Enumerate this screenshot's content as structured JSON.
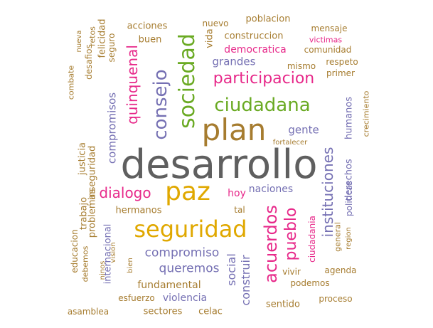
{
  "colors": {
    "gray": "#5f5f5f",
    "gold": "#e0a800",
    "green": "#6aaa23",
    "pink": "#e7298a",
    "purple": "#7570b3",
    "orange": "#d95f02",
    "brown": "#a67c2f",
    "teal": "#1b9e77"
  },
  "words": [
    {
      "text": "desarrollo",
      "color": "gray"
    },
    {
      "text": "plan",
      "color": "brown"
    },
    {
      "text": "paz",
      "color": "gold"
    },
    {
      "text": "seguridad",
      "color": "gold"
    },
    {
      "text": "sociedad",
      "color": "green"
    },
    {
      "text": "ciudadana",
      "color": "green"
    },
    {
      "text": "participacion",
      "color": "pink"
    },
    {
      "text": "consejo",
      "color": "purple"
    },
    {
      "text": "quinquenal",
      "color": "pink"
    },
    {
      "text": "acuerdos",
      "color": "pink"
    },
    {
      "text": "pueblo",
      "color": "pink"
    },
    {
      "text": "dialogo",
      "color": "pink"
    },
    {
      "text": "instituciones",
      "color": "purple"
    },
    {
      "text": "compromiso",
      "color": "purple"
    },
    {
      "text": "queremos",
      "color": "purple"
    },
    {
      "text": "social",
      "color": "purple"
    },
    {
      "text": "construir",
      "color": "purple"
    },
    {
      "text": "gente",
      "color": "purple"
    },
    {
      "text": "grandes",
      "color": "purple"
    },
    {
      "text": "compromisos",
      "color": "purple"
    },
    {
      "text": "naciones",
      "color": "purple"
    },
    {
      "text": "fundamental",
      "color": "brown"
    },
    {
      "text": "violencia",
      "color": "purple"
    },
    {
      "text": "hoy",
      "color": "pink"
    },
    {
      "text": "democratica",
      "color": "pink"
    },
    {
      "text": "internacional",
      "color": "purple"
    },
    {
      "text": "hermanos",
      "color": "brown"
    },
    {
      "text": "humanos",
      "color": "purple"
    },
    {
      "text": "derechos",
      "color": "purple"
    },
    {
      "text": "politicas",
      "color": "purple"
    },
    {
      "text": "construccion",
      "color": "brown"
    },
    {
      "text": "poblacion",
      "color": "brown"
    },
    {
      "text": "acciones",
      "color": "brown"
    },
    {
      "text": "buen",
      "color": "brown"
    },
    {
      "text": "vida",
      "color": "brown"
    },
    {
      "text": "nuevo",
      "color": "brown"
    },
    {
      "text": "mensaje",
      "color": "brown"
    },
    {
      "text": "victimas",
      "color": "pink"
    },
    {
      "text": "comunidad",
      "color": "brown"
    },
    {
      "text": "respeto",
      "color": "brown"
    },
    {
      "text": "primer",
      "color": "brown"
    },
    {
      "text": "mismo",
      "color": "brown"
    },
    {
      "text": "crecimiento",
      "color": "brown"
    },
    {
      "text": "fortalecer",
      "color": "brown"
    },
    {
      "text": "justicia",
      "color": "brown"
    },
    {
      "text": "trabajo",
      "color": "brown"
    },
    {
      "text": "problemas",
      "color": "brown"
    },
    {
      "text": "inseguridad",
      "color": "brown"
    },
    {
      "text": "educacion",
      "color": "brown"
    },
    {
      "text": "debemos",
      "color": "brown"
    },
    {
      "text": "ninos",
      "color": "brown"
    },
    {
      "text": "vision",
      "color": "brown"
    },
    {
      "text": "bien",
      "color": "brown"
    },
    {
      "text": "esfuerzo",
      "color": "brown"
    },
    {
      "text": "asamblea",
      "color": "brown"
    },
    {
      "text": "sectores",
      "color": "brown"
    },
    {
      "text": "celac",
      "color": "brown"
    },
    {
      "text": "sentido",
      "color": "brown"
    },
    {
      "text": "proceso",
      "color": "brown"
    },
    {
      "text": "podemos",
      "color": "brown"
    },
    {
      "text": "agenda",
      "color": "brown"
    },
    {
      "text": "vivir",
      "color": "brown"
    },
    {
      "text": "ciudadania",
      "color": "pink"
    },
    {
      "text": "general",
      "color": "brown"
    },
    {
      "text": "region",
      "color": "brown"
    },
    {
      "text": "tal",
      "color": "brown"
    },
    {
      "text": "combate",
      "color": "brown"
    },
    {
      "text": "nueva",
      "color": "brown"
    },
    {
      "text": "desafios",
      "color": "brown"
    },
    {
      "text": "retos",
      "color": "brown"
    },
    {
      "text": "felicidad",
      "color": "brown"
    },
    {
      "text": "seguro",
      "color": "brown"
    }
  ]
}
